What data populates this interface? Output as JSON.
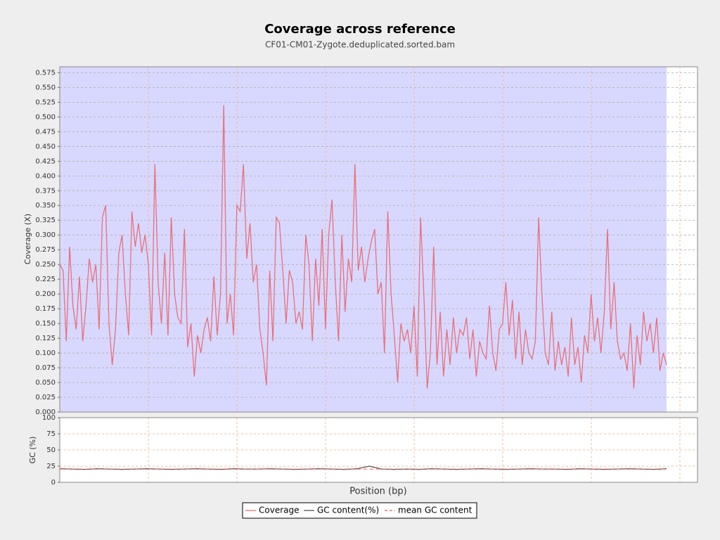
{
  "chart_data": [
    {
      "type": "line",
      "title": "Coverage across reference",
      "subtitle": "CF01-CM01-Zygote.deduplicated.sorted.bam",
      "ylabel": "Coverage (X)",
      "ylim": [
        0,
        0.585
      ],
      "yticks": [
        {
          "value": 0,
          "label": "0.000"
        },
        {
          "value": 0.025,
          "label": "0.025"
        },
        {
          "value": 0.05,
          "label": "0.050"
        },
        {
          "value": 0.075,
          "label": "0.075"
        },
        {
          "value": 0.1,
          "label": "0.100"
        },
        {
          "value": 0.125,
          "label": "0.125"
        },
        {
          "value": 0.15,
          "label": "0.150"
        },
        {
          "value": 0.175,
          "label": "0.175"
        },
        {
          "value": 0.2,
          "label": "0.200"
        },
        {
          "value": 0.225,
          "label": "0.225"
        },
        {
          "value": 0.25,
          "label": "0.250"
        },
        {
          "value": 0.275,
          "label": "0.275"
        },
        {
          "value": 0.3,
          "label": "0.300"
        },
        {
          "value": 0.325,
          "label": "0.325"
        },
        {
          "value": 0.35,
          "label": "0.350"
        },
        {
          "value": 0.375,
          "label": "0.375"
        },
        {
          "value": 0.4,
          "label": "0.400"
        },
        {
          "value": 0.425,
          "label": "0.425"
        },
        {
          "value": 0.45,
          "label": "0.450"
        },
        {
          "value": 0.475,
          "label": "0.475"
        },
        {
          "value": 0.5,
          "label": "0.500"
        },
        {
          "value": 0.525,
          "label": "0.525"
        },
        {
          "value": 0.55,
          "label": "0.550"
        },
        {
          "value": 0.575,
          "label": "0.575"
        }
      ],
      "grid": true,
      "series": [
        {
          "name": "Coverage",
          "color": "#e8707a",
          "values": [
            0.25,
            0.24,
            0.12,
            0.28,
            0.18,
            0.14,
            0.23,
            0.12,
            0.18,
            0.26,
            0.22,
            0.25,
            0.14,
            0.33,
            0.35,
            0.15,
            0.08,
            0.14,
            0.27,
            0.3,
            0.2,
            0.13,
            0.34,
            0.28,
            0.32,
            0.27,
            0.3,
            0.25,
            0.13,
            0.42,
            0.22,
            0.15,
            0.27,
            0.13,
            0.33,
            0.2,
            0.16,
            0.15,
            0.31,
            0.11,
            0.15,
            0.06,
            0.13,
            0.1,
            0.14,
            0.16,
            0.12,
            0.23,
            0.13,
            0.2,
            0.52,
            0.15,
            0.2,
            0.13,
            0.35,
            0.34,
            0.42,
            0.26,
            0.32,
            0.22,
            0.25,
            0.14,
            0.1,
            0.045,
            0.24,
            0.12,
            0.33,
            0.32,
            0.24,
            0.15,
            0.24,
            0.22,
            0.15,
            0.17,
            0.14,
            0.3,
            0.25,
            0.12,
            0.26,
            0.18,
            0.31,
            0.14,
            0.3,
            0.36,
            0.22,
            0.12,
            0.3,
            0.17,
            0.26,
            0.22,
            0.42,
            0.24,
            0.28,
            0.22,
            0.26,
            0.29,
            0.31,
            0.2,
            0.22,
            0.1,
            0.34,
            0.2,
            0.13,
            0.05,
            0.15,
            0.12,
            0.14,
            0.1,
            0.18,
            0.06,
            0.33,
            0.2,
            0.04,
            0.1,
            0.28,
            0.08,
            0.17,
            0.06,
            0.14,
            0.08,
            0.16,
            0.1,
            0.14,
            0.13,
            0.16,
            0.09,
            0.14,
            0.06,
            0.12,
            0.1,
            0.09,
            0.18,
            0.1,
            0.07,
            0.14,
            0.15,
            0.22,
            0.13,
            0.19,
            0.09,
            0.17,
            0.08,
            0.14,
            0.1,
            0.09,
            0.12,
            0.33,
            0.2,
            0.1,
            0.08,
            0.17,
            0.07,
            0.12,
            0.08,
            0.11,
            0.06,
            0.16,
            0.08,
            0.11,
            0.05,
            0.13,
            0.1,
            0.2,
            0.12,
            0.16,
            0.1,
            0.17,
            0.31,
            0.14,
            0.22,
            0.12,
            0.09,
            0.1,
            0.07,
            0.15,
            0.04,
            0.13,
            0.08,
            0.17,
            0.12,
            0.15,
            0.1,
            0.16,
            0.07,
            0.1,
            0.08
          ]
        }
      ]
    },
    {
      "type": "line",
      "ylabel": "GC (%)",
      "xlabel": "Position (bp)",
      "ylim": [
        0,
        100
      ],
      "yticks": [
        0,
        25,
        50,
        75,
        100
      ],
      "grid": true,
      "series": [
        {
          "name": "GC content(%)",
          "color": "#555555",
          "values": [
            21,
            20.5,
            20,
            21,
            20.5,
            20,
            20.5,
            21,
            20.5,
            20,
            20.5,
            21,
            20.5,
            20,
            21,
            20.5,
            20.5,
            21,
            20.5,
            20,
            20.5,
            21,
            20.5,
            20,
            21,
            25,
            20.5,
            20,
            20.5,
            20,
            21,
            20.5,
            20,
            20.5,
            21,
            20.5,
            20,
            20.5,
            21,
            20.5,
            20.5,
            20,
            21,
            20.5,
            20,
            20.5,
            21,
            20.5,
            20,
            21
          ]
        },
        {
          "name": "mean GC content",
          "color": "#ff5555",
          "dashed": true,
          "values": [
            20.5
          ]
        }
      ]
    }
  ]
}
